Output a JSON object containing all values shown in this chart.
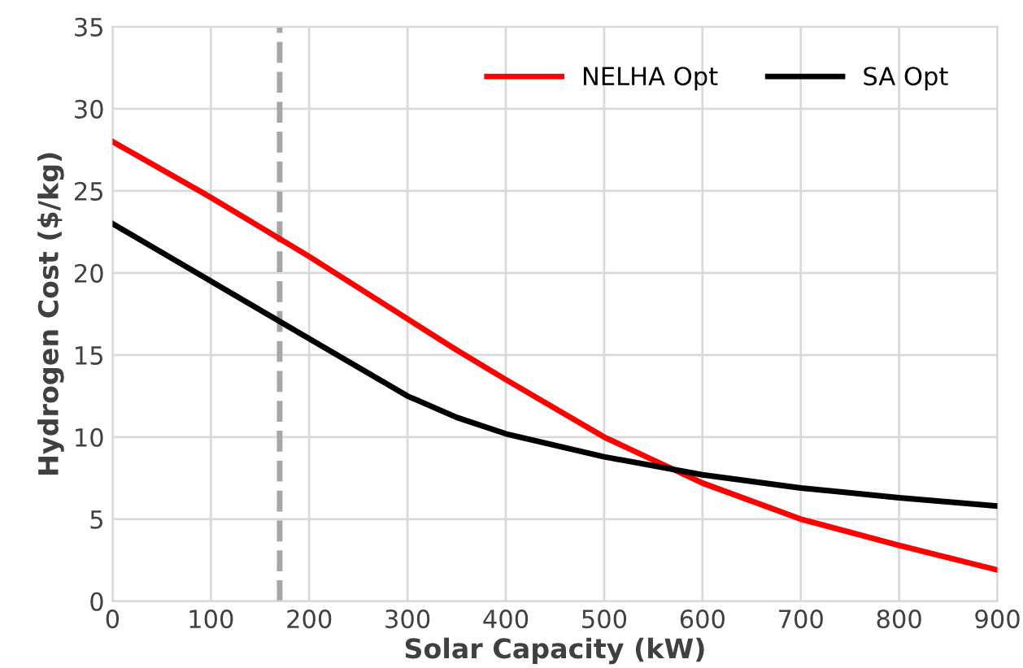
{
  "chart_data": {
    "type": "line",
    "xlabel": "Solar Capacity (kW)",
    "ylabel": "Hydrogen Cost ($/kg)",
    "x": [
      0,
      100,
      200,
      300,
      350,
      400,
      500,
      600,
      700,
      800,
      900
    ],
    "series": [
      {
        "name": "NELHA Opt",
        "color": "#ff0000",
        "values": [
          28,
          24.6,
          21,
          17.2,
          15.3,
          13.5,
          10,
          7.2,
          5,
          3.4,
          1.9
        ]
      },
      {
        "name": "SA Opt",
        "color": "#000000",
        "values": [
          23,
          19.5,
          16,
          12.5,
          11.2,
          10.2,
          8.8,
          7.7,
          6.9,
          6.3,
          5.8
        ]
      }
    ],
    "xlim": [
      0,
      900
    ],
    "xticks": [
      0,
      100,
      200,
      300,
      400,
      500,
      600,
      700,
      800,
      900
    ],
    "ylim": [
      0,
      35
    ],
    "yticks": [
      0,
      5,
      10,
      15,
      20,
      25,
      30,
      35
    ],
    "ref_lines": [
      {
        "axis": "x",
        "value": 170,
        "color": "#a6a6a6",
        "line_style": "dashed"
      }
    ],
    "grid": true,
    "legend": "top right",
    "marker": "none",
    "line_style": "solid"
  }
}
